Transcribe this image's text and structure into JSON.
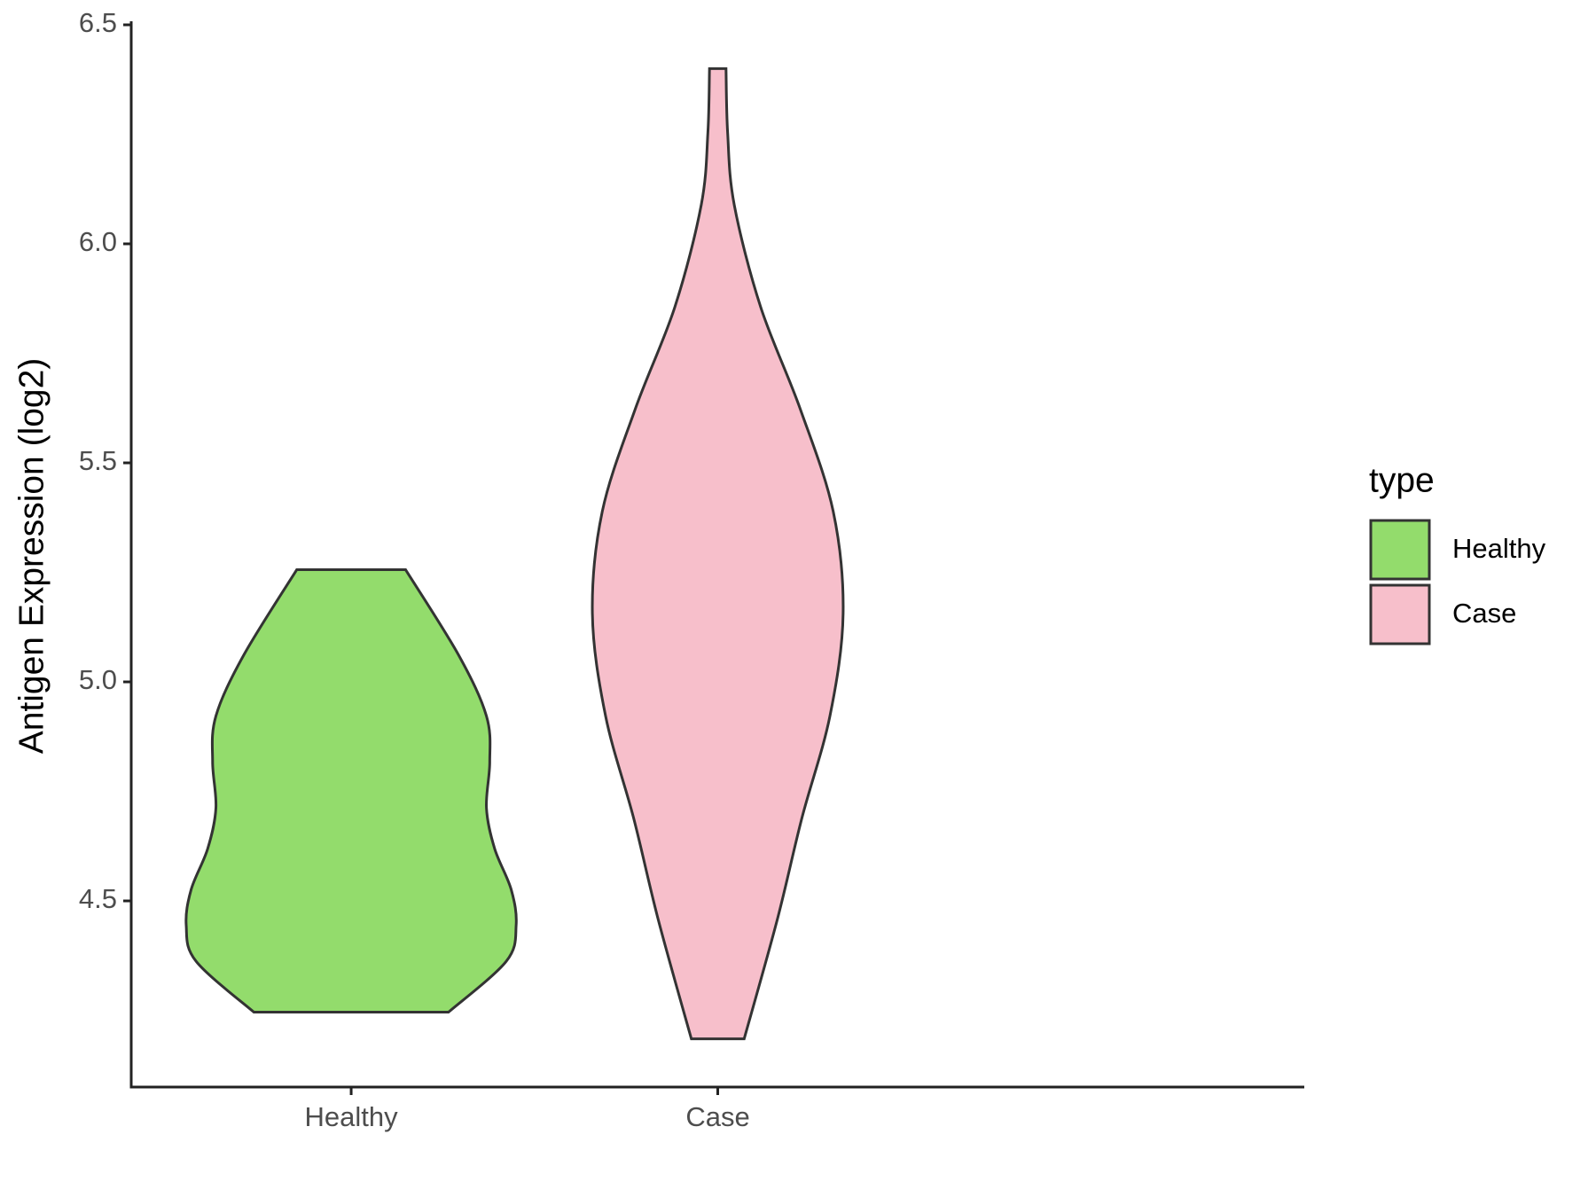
{
  "chart_data": {
    "type": "violin",
    "ylabel": "Antigen Expression (log2)",
    "categories": [
      "Healthy",
      "Case"
    ],
    "legend_title": "type",
    "series": [
      {
        "name": "Healthy",
        "color": "#93dc6c",
        "y": [
          5.256,
          5.062,
          4.922,
          4.817,
          4.712,
          4.619,
          4.526,
          4.444,
          4.362,
          4.246
        ],
        "width": [
          0.33,
          0.65,
          0.82,
          0.84,
          0.82,
          0.87,
          0.97,
          1.0,
          0.94,
          0.59
        ]
      },
      {
        "name": "Case",
        "color": "#f7bfcb",
        "y": [
          6.4,
          6.253,
          6.089,
          5.856,
          5.623,
          5.389,
          5.156,
          4.922,
          4.689,
          4.456,
          4.185
        ],
        "width": [
          0.05,
          0.06,
          0.1,
          0.26,
          0.5,
          0.7,
          0.76,
          0.68,
          0.51,
          0.36,
          0.16
        ]
      }
    ],
    "ylim": [
      4.075,
      6.5
    ],
    "yticks": [
      4.5,
      {
        "value": 5.0,
        "label": "5.0"
      },
      5.5,
      {
        "value": 6.0,
        "label": "6.0"
      },
      6.5
    ],
    "legend": "right"
  }
}
